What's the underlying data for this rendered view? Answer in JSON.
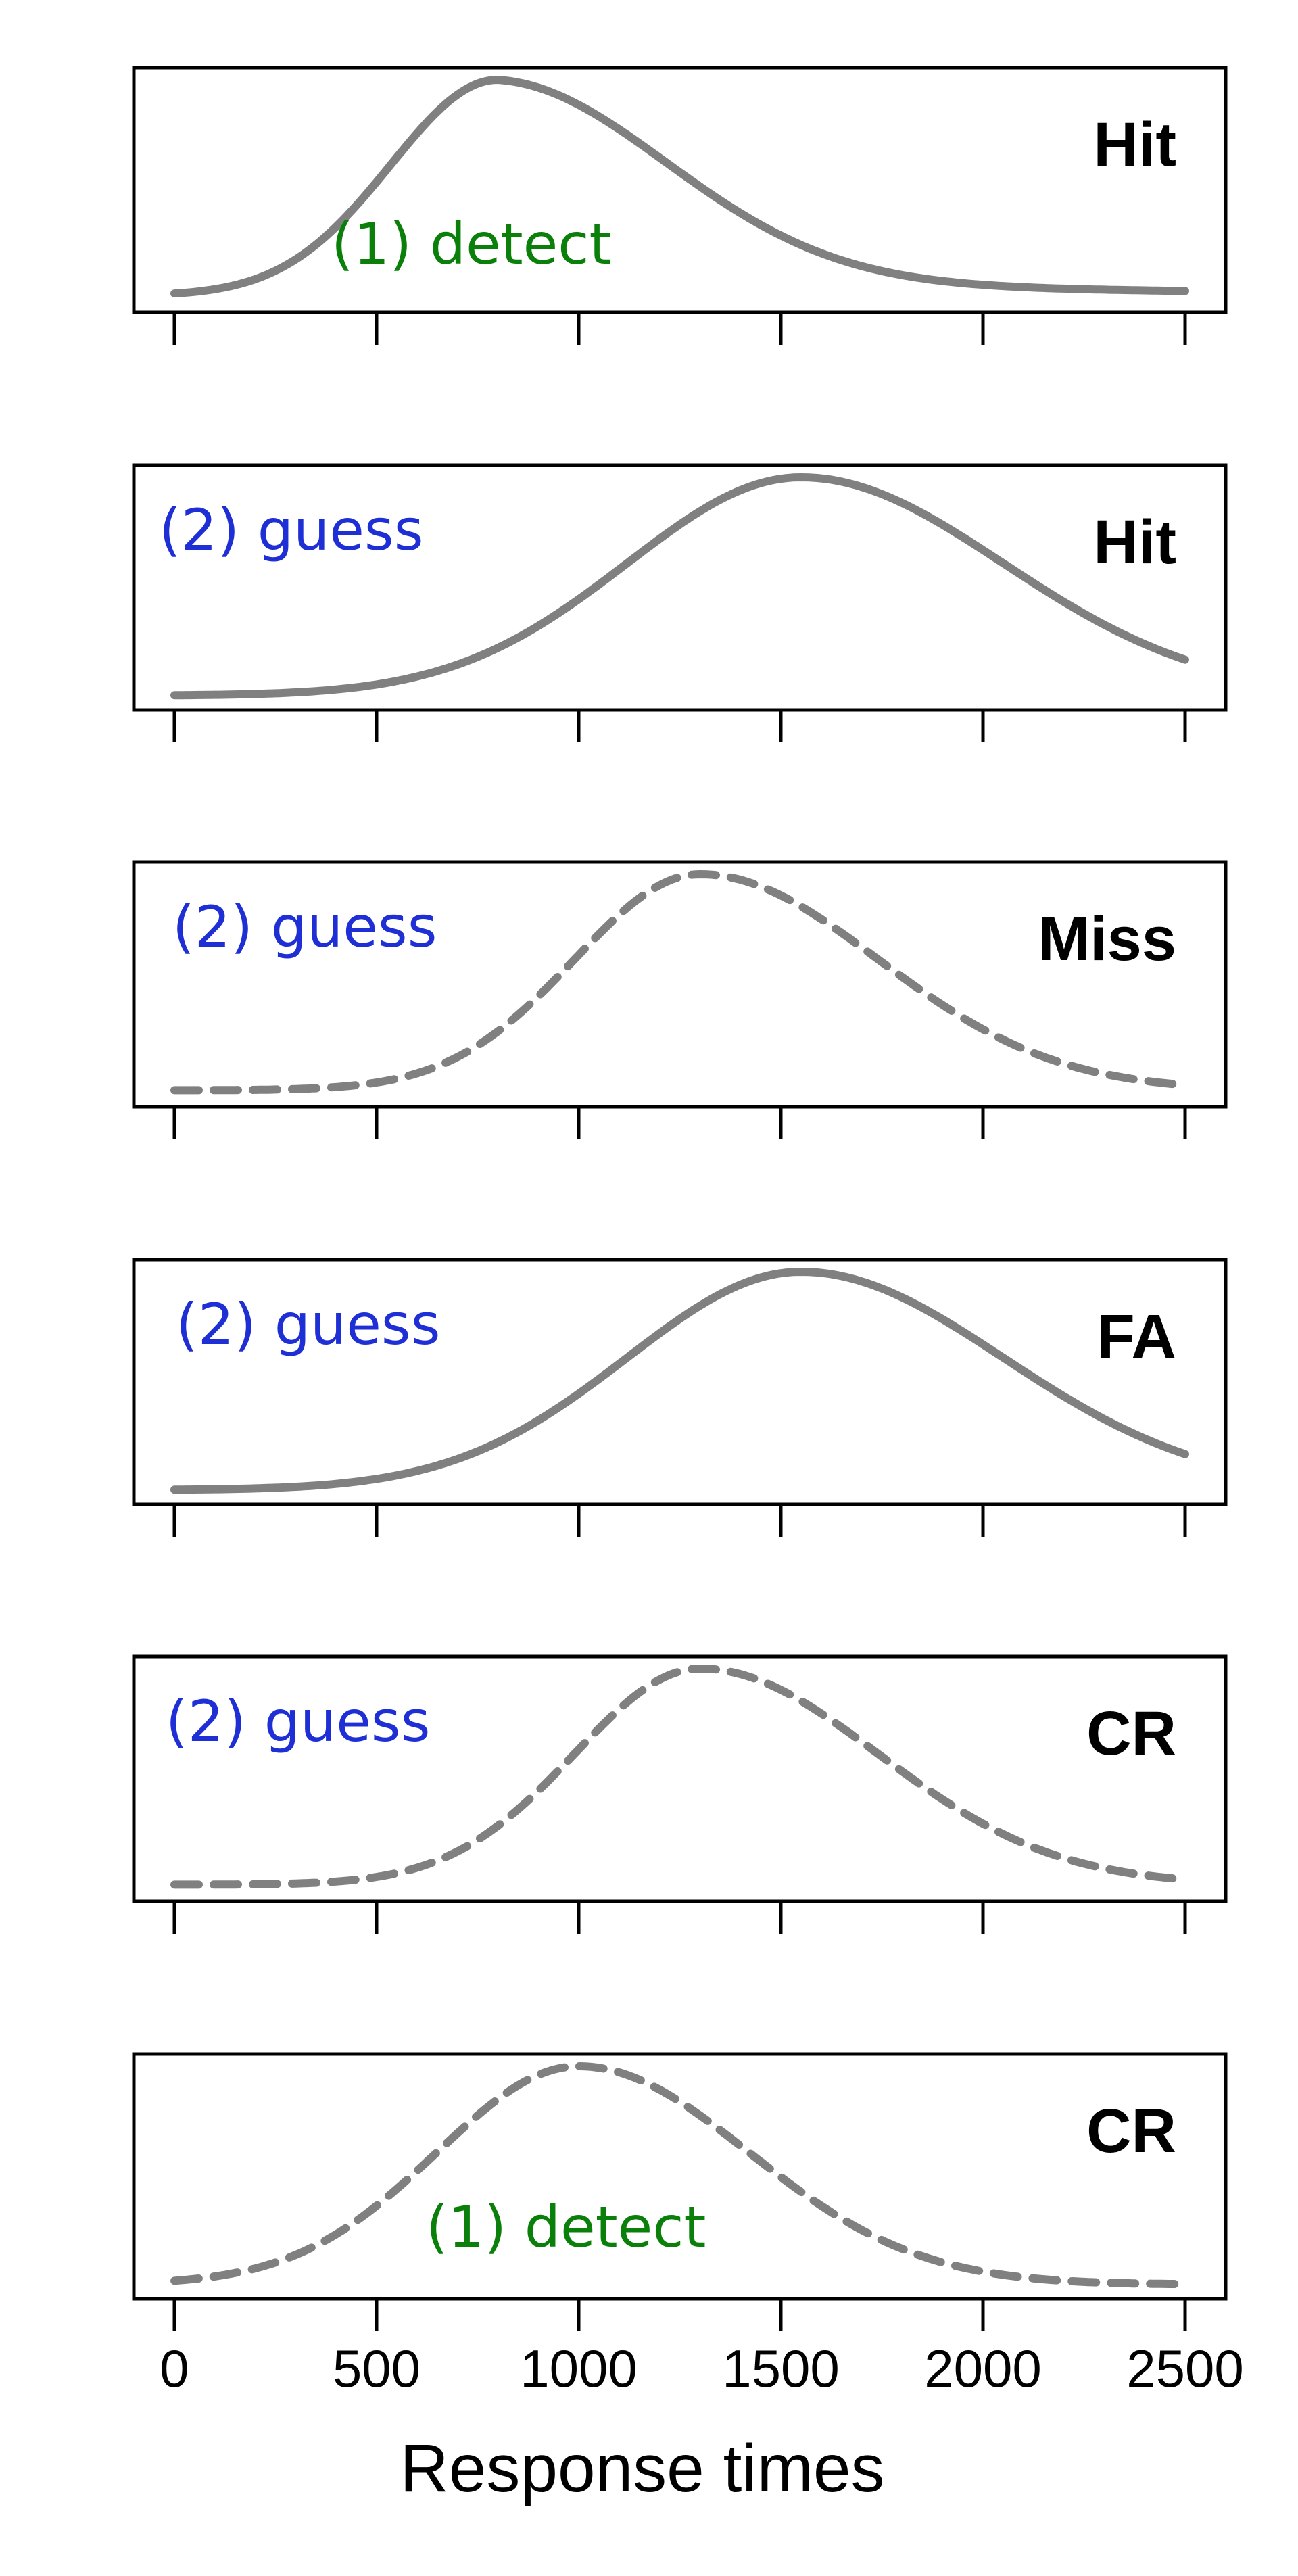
{
  "chart_data": {
    "type": "line",
    "xlabel": "Response times",
    "xlim": [
      0,
      2500
    ],
    "x_ticks": [
      "0",
      "500",
      "1000",
      "1500",
      "2000",
      "2500"
    ],
    "x_tick_values": [
      0,
      500,
      1000,
      1500,
      2000,
      2500
    ],
    "ylim": [
      0,
      1
    ],
    "grid": false,
    "line_color": "#808080",
    "annotation_colors": {
      "detect": "#0a7f0a",
      "guess": "#1f2fd6"
    },
    "panels": [
      {
        "label": "Hit",
        "annotation": "(1) detect",
        "annotation_type": "detect",
        "line_style": "solid",
        "curve": {
          "mode_x": 800,
          "sigma_left": 265,
          "sigma_right": 420,
          "tail_weight": 0.12,
          "tail_scale": 1000,
          "baseline": 0.02
        }
      },
      {
        "label": "Hit",
        "annotation": "(2) guess",
        "annotation_type": "guess",
        "line_style": "solid",
        "curve": {
          "mode_x": 1550,
          "sigma_left": 430,
          "sigma_right": 500,
          "tail_weight": 0,
          "tail_scale": 1,
          "baseline": 0.01
        }
      },
      {
        "label": "Miss",
        "annotation": "(2) guess",
        "annotation_type": "guess",
        "line_style": "dashed",
        "curve": {
          "mode_x": 1300,
          "sigma_left": 310,
          "sigma_right": 440,
          "tail_weight": 0,
          "tail_scale": 1,
          "baseline": 0.02
        }
      },
      {
        "label": "FA",
        "annotation": "(2) guess",
        "annotation_type": "guess",
        "line_style": "solid",
        "curve": {
          "mode_x": 1550,
          "sigma_left": 430,
          "sigma_right": 500,
          "tail_weight": 0,
          "tail_scale": 1,
          "baseline": 0.01
        }
      },
      {
        "label": "CR",
        "annotation": "(2) guess",
        "annotation_type": "guess",
        "line_style": "dashed",
        "curve": {
          "mode_x": 1300,
          "sigma_left": 310,
          "sigma_right": 440,
          "tail_weight": 0,
          "tail_scale": 1,
          "baseline": 0.02
        }
      },
      {
        "label": "CR",
        "annotation": "(1) detect",
        "annotation_type": "detect",
        "line_style": "dashed",
        "curve": {
          "mode_x": 1000,
          "sigma_left": 350,
          "sigma_right": 420,
          "tail_weight": 0,
          "tail_scale": 1,
          "baseline": 0.01
        }
      }
    ]
  }
}
